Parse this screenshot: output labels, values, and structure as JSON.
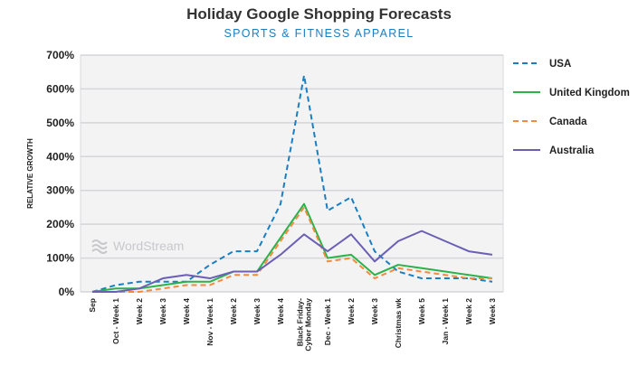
{
  "chart_data": {
    "type": "line",
    "title": "Holiday Google Shopping Forecasts",
    "subtitle": "SPORTS & FITNESS APPAREL",
    "ylabel": "RELATIVE GROWTH",
    "xlabel": "",
    "ylim": [
      0,
      700
    ],
    "yticks": [
      "0%",
      "100%",
      "200%",
      "300%",
      "400%",
      "500%",
      "600%",
      "700%"
    ],
    "grid": true,
    "legend_position": "right",
    "categories": [
      "Sep",
      "Oct - Week 1",
      "Week 2",
      "Week 3",
      "Week 4",
      "Nov - Week 1",
      "Week 2",
      "Week 3",
      "Week 4",
      [
        "Black Friday-",
        "Cyber Monday"
      ],
      "Dec - Week 1",
      "Week 2",
      "Week 3",
      "Christmas wk",
      "Week 5",
      "Jan - Week 1",
      "Week 2",
      "Week 3"
    ],
    "series": [
      {
        "name": "USA",
        "color": "#1a7fc1",
        "dashed": true,
        "values": [
          0,
          20,
          30,
          30,
          30,
          80,
          120,
          120,
          260,
          640,
          240,
          280,
          120,
          60,
          40,
          40,
          40,
          30
        ]
      },
      {
        "name": "United Kingdom",
        "color": "#2bb34a",
        "dashed": false,
        "values": [
          0,
          10,
          10,
          20,
          30,
          30,
          60,
          60,
          160,
          260,
          100,
          110,
          50,
          80,
          70,
          60,
          50,
          40
        ]
      },
      {
        "name": "Canada",
        "color": "#f58a3c",
        "dashed": true,
        "values": [
          0,
          0,
          0,
          10,
          20,
          20,
          50,
          50,
          150,
          250,
          90,
          100,
          40,
          70,
          60,
          50,
          40,
          40
        ]
      },
      {
        "name": "Australia",
        "color": "#6a5fb5",
        "dashed": false,
        "values": [
          0,
          0,
          10,
          40,
          50,
          40,
          60,
          60,
          110,
          170,
          120,
          170,
          90,
          150,
          180,
          150,
          120,
          110
        ]
      }
    ],
    "watermark": "WordStream"
  }
}
